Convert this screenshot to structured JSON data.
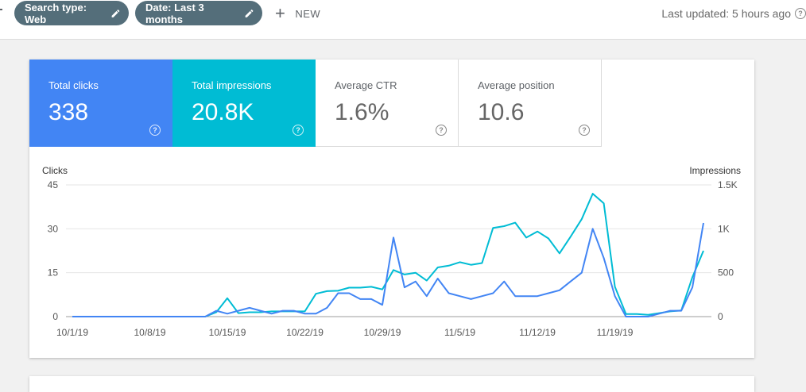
{
  "toolbar": {
    "chips": [
      {
        "label": "Search type: Web"
      },
      {
        "label": "Date: Last 3 months"
      }
    ],
    "new_label": "NEW",
    "last_updated": "Last updated: 5 hours ago"
  },
  "metrics": [
    {
      "label": "Total clicks",
      "value": "338",
      "selected": true,
      "color": "#4285f4"
    },
    {
      "label": "Total impressions",
      "value": "20.8K",
      "selected": true,
      "color": "#00bcd4"
    },
    {
      "label": "Average CTR",
      "value": "1.6%",
      "selected": false
    },
    {
      "label": "Average position",
      "value": "10.6",
      "selected": false
    }
  ],
  "chart_data": {
    "type": "line",
    "left_axis_label": "Clicks",
    "right_axis_label": "Impressions",
    "left_ylim": [
      0,
      45
    ],
    "right_ylim": [
      0,
      1500
    ],
    "left_ticks": [
      "0",
      "15",
      "30",
      "45"
    ],
    "right_ticks": [
      "0",
      "500",
      "1K",
      "1.5K"
    ],
    "x_tick_labels": [
      "10/1/19",
      "10/8/19",
      "10/15/19",
      "10/22/19",
      "10/29/19",
      "11/5/19",
      "11/12/19",
      "11/19/19"
    ],
    "start_date": "2019-10-01",
    "series": [
      {
        "name": "Clicks",
        "axis": "left",
        "color": "#4285f4",
        "values": [
          0,
          0,
          0,
          0,
          0,
          0,
          0,
          0,
          0,
          0,
          0,
          0,
          0,
          2,
          1,
          2,
          3,
          2,
          1,
          2,
          2,
          1,
          1,
          3,
          8,
          8,
          6,
          6,
          4,
          27,
          10,
          12,
          7,
          13,
          8,
          7,
          6,
          7,
          8,
          12,
          7,
          7,
          7,
          8,
          9,
          12,
          15,
          30,
          20,
          7,
          0,
          0,
          0,
          1,
          2,
          2,
          10,
          32
        ]
      },
      {
        "name": "Impressions",
        "axis": "right",
        "color": "#00bcd4",
        "values": [
          0,
          0,
          0,
          0,
          0,
          0,
          0,
          0,
          0,
          0,
          0,
          0,
          0,
          50,
          210,
          40,
          50,
          50,
          60,
          60,
          60,
          60,
          260,
          290,
          295,
          330,
          330,
          340,
          310,
          530,
          480,
          500,
          410,
          560,
          580,
          620,
          590,
          610,
          1010,
          1030,
          1070,
          900,
          970,
          890,
          720,
          910,
          1110,
          1400,
          1290,
          340,
          30,
          30,
          20,
          40,
          60,
          70,
          450,
          750
        ]
      }
    ]
  }
}
